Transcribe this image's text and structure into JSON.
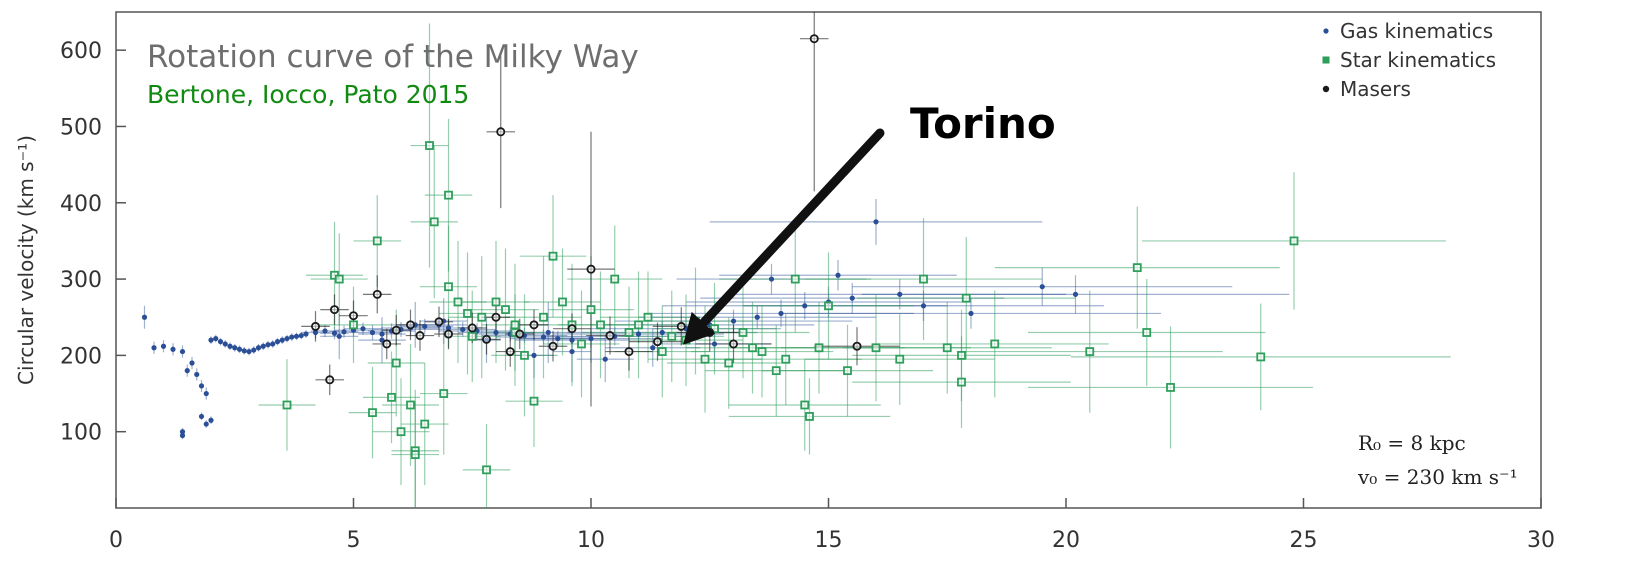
{
  "chart_data": {
    "type": "scatter",
    "title": "Rotation curve of the Milky Way",
    "subtitle": "Bertone, Iocco, Pato 2015",
    "xlabel": "",
    "ylabel": "Circular velocity (km s⁻¹)",
    "xlim": [
      0,
      30
    ],
    "ylim": [
      0,
      650
    ],
    "x_ticks": [
      "0",
      "5",
      "10",
      "15",
      "20",
      "25",
      "30"
    ],
    "y_ticks": [
      "100",
      "200",
      "300",
      "400",
      "500",
      "600"
    ],
    "grid": false,
    "legend_placement": "top-right",
    "annotation": {
      "text": "Torino",
      "x": 12.0,
      "y": 210
    },
    "params": {
      "r0": "R₀ = 8 kpc",
      "v0": "v₀ = 230 km s⁻¹"
    },
    "colors": {
      "gas": "#2b4f96",
      "star": "#2e9e5b",
      "maser": "#1a1a1a"
    },
    "series": [
      {
        "name": "Gas kinematics",
        "marker": "dot",
        "points": [
          [
            0.6,
            250,
            0,
            15
          ],
          [
            0.8,
            210,
            0,
            8
          ],
          [
            1.0,
            212,
            0,
            8
          ],
          [
            1.2,
            208,
            0,
            8
          ],
          [
            1.4,
            205,
            0,
            8
          ],
          [
            1.5,
            180,
            0,
            8
          ],
          [
            1.6,
            190,
            0,
            8
          ],
          [
            1.7,
            175,
            0,
            8
          ],
          [
            1.8,
            160,
            0,
            8
          ],
          [
            1.9,
            150,
            0,
            8
          ],
          [
            1.4,
            100,
            0,
            5
          ],
          [
            1.4,
            95,
            0,
            5
          ],
          [
            1.8,
            120,
            0,
            5
          ],
          [
            1.9,
            110,
            0,
            5
          ],
          [
            2.0,
            115,
            0,
            5
          ],
          [
            2.0,
            220,
            0,
            5
          ],
          [
            2.1,
            222,
            0,
            5
          ],
          [
            2.2,
            218,
            0,
            5
          ],
          [
            2.3,
            215,
            0,
            5
          ],
          [
            2.4,
            212,
            0,
            5
          ],
          [
            2.5,
            210,
            0,
            5
          ],
          [
            2.6,
            208,
            0,
            5
          ],
          [
            2.7,
            206,
            0,
            5
          ],
          [
            2.8,
            205,
            0,
            5
          ],
          [
            2.9,
            207,
            0,
            5
          ],
          [
            3.0,
            210,
            0,
            5
          ],
          [
            3.1,
            212,
            0,
            5
          ],
          [
            3.2,
            214,
            0,
            5
          ],
          [
            3.3,
            215,
            0,
            5
          ],
          [
            3.4,
            218,
            0,
            5
          ],
          [
            3.5,
            220,
            0,
            5
          ],
          [
            3.6,
            222,
            0,
            5
          ],
          [
            3.7,
            224,
            0,
            5
          ],
          [
            3.8,
            225,
            0,
            5
          ],
          [
            3.9,
            226,
            0,
            5
          ],
          [
            4.0,
            228,
            0,
            5
          ],
          [
            4.2,
            230,
            0.3,
            8
          ],
          [
            4.4,
            232,
            0.3,
            8
          ],
          [
            4.6,
            229,
            0.3,
            8
          ],
          [
            4.8,
            231,
            0.3,
            8
          ],
          [
            5.0,
            233,
            0.4,
            8
          ],
          [
            5.2,
            235,
            0.4,
            8
          ],
          [
            5.4,
            230,
            0.5,
            10
          ],
          [
            5.6,
            228,
            0.5,
            10
          ],
          [
            5.8,
            232,
            0.5,
            10
          ],
          [
            6.0,
            234,
            0.6,
            10
          ],
          [
            6.2,
            236,
            0.6,
            10
          ],
          [
            6.5,
            238,
            0.6,
            10
          ],
          [
            6.8,
            240,
            0.6,
            10
          ],
          [
            7.0,
            236,
            0.7,
            10
          ],
          [
            7.3,
            234,
            0.7,
            10
          ],
          [
            7.6,
            232,
            0.8,
            10
          ],
          [
            8.0,
            230,
            0.8,
            10
          ],
          [
            8.3,
            228,
            0.8,
            10
          ],
          [
            8.6,
            226,
            0.9,
            10
          ],
          [
            9.0,
            224,
            1.0,
            10
          ],
          [
            9.3,
            222,
            1.0,
            10
          ],
          [
            9.6,
            220,
            1.2,
            10
          ],
          [
            10.0,
            222,
            1.5,
            12
          ],
          [
            10.5,
            225,
            1.5,
            12
          ],
          [
            11.0,
            228,
            1.8,
            12
          ],
          [
            11.5,
            230,
            2.0,
            15
          ],
          [
            12.0,
            235,
            2.0,
            15
          ],
          [
            12.5,
            240,
            2.2,
            15
          ],
          [
            13.0,
            245,
            2.5,
            15
          ],
          [
            13.5,
            250,
            2.5,
            15
          ],
          [
            14.0,
            255,
            2.8,
            18
          ],
          [
            14.5,
            265,
            3.0,
            18
          ],
          [
            15.0,
            270,
            3.0,
            20
          ],
          [
            15.5,
            275,
            3.2,
            20
          ],
          [
            16.0,
            375,
            3.5,
            30
          ],
          [
            16.5,
            280,
            3.5,
            20
          ],
          [
            17.0,
            265,
            3.8,
            20
          ],
          [
            18.0,
            255,
            4.0,
            20
          ],
          [
            19.5,
            290,
            4.0,
            25
          ],
          [
            20.2,
            280,
            4.5,
            25
          ],
          [
            15.2,
            305,
            2.5,
            20
          ],
          [
            13.8,
            300,
            2.0,
            20
          ],
          [
            9.1,
            230,
            0.5,
            40
          ],
          [
            9.6,
            205,
            0.4,
            40
          ],
          [
            10.3,
            195,
            0.6,
            30
          ],
          [
            8.8,
            200,
            0.4,
            30
          ],
          [
            7.8,
            220,
            0.3,
            30
          ],
          [
            6.9,
            245,
            0.5,
            30
          ],
          [
            6.3,
            240,
            0.5,
            30
          ],
          [
            5.6,
            220,
            0.5,
            30
          ],
          [
            4.7,
            225,
            0.4,
            30
          ],
          [
            11.3,
            210,
            1.0,
            25
          ],
          [
            12.6,
            215,
            1.2,
            25
          ]
        ]
      },
      {
        "name": "Star kinematics",
        "marker": "square",
        "points": [
          [
            3.6,
            135,
            0.6,
            60
          ],
          [
            4.6,
            305,
            0.6,
            70
          ],
          [
            4.7,
            300,
            0.6,
            60
          ],
          [
            5.0,
            240,
            0.8,
            50
          ],
          [
            5.4,
            125,
            0.5,
            60
          ],
          [
            5.5,
            350,
            0.5,
            60
          ],
          [
            5.8,
            145,
            0.6,
            60
          ],
          [
            5.9,
            190,
            0.6,
            70
          ],
          [
            6.0,
            100,
            0.6,
            70
          ],
          [
            6.2,
            135,
            0.6,
            80
          ],
          [
            6.3,
            75,
            0.5,
            80
          ],
          [
            6.3,
            70,
            0.5,
            70
          ],
          [
            6.5,
            110,
            0.5,
            80
          ],
          [
            6.6,
            475,
            0.4,
            160
          ],
          [
            6.7,
            375,
            0.5,
            100
          ],
          [
            6.9,
            150,
            0.5,
            80
          ],
          [
            7.0,
            410,
            0.5,
            100
          ],
          [
            7.0,
            290,
            0.6,
            80
          ],
          [
            7.2,
            270,
            0.6,
            80
          ],
          [
            7.4,
            255,
            0.6,
            80
          ],
          [
            7.7,
            250,
            0.7,
            80
          ],
          [
            7.8,
            50,
            0.5,
            60
          ],
          [
            8.0,
            270,
            0.7,
            80
          ],
          [
            8.2,
            260,
            0.7,
            80
          ],
          [
            8.4,
            240,
            0.7,
            80
          ],
          [
            8.6,
            200,
            0.7,
            80
          ],
          [
            8.8,
            140,
            0.6,
            60
          ],
          [
            9.0,
            250,
            0.8,
            80
          ],
          [
            9.2,
            330,
            0.7,
            80
          ],
          [
            9.4,
            270,
            0.8,
            70
          ],
          [
            9.6,
            240,
            0.8,
            80
          ],
          [
            9.8,
            215,
            0.8,
            70
          ],
          [
            10.0,
            260,
            0.9,
            70
          ],
          [
            10.2,
            240,
            0.9,
            70
          ],
          [
            10.5,
            300,
            1.0,
            70
          ],
          [
            10.8,
            230,
            1.0,
            60
          ],
          [
            11.0,
            240,
            1.0,
            70
          ],
          [
            11.2,
            250,
            1.0,
            60
          ],
          [
            11.5,
            205,
            1.0,
            60
          ],
          [
            11.7,
            225,
            1.1,
            60
          ],
          [
            12.0,
            220,
            1.2,
            60
          ],
          [
            12.2,
            245,
            1.2,
            70
          ],
          [
            12.4,
            195,
            1.2,
            70
          ],
          [
            12.6,
            235,
            1.3,
            60
          ],
          [
            12.9,
            190,
            1.3,
            60
          ],
          [
            13.2,
            230,
            1.4,
            60
          ],
          [
            13.4,
            210,
            1.4,
            60
          ],
          [
            13.6,
            205,
            1.5,
            60
          ],
          [
            13.9,
            180,
            1.5,
            60
          ],
          [
            14.1,
            195,
            1.6,
            60
          ],
          [
            14.3,
            300,
            1.6,
            70
          ],
          [
            14.5,
            135,
            1.6,
            60
          ],
          [
            14.6,
            120,
            1.7,
            50
          ],
          [
            14.8,
            210,
            1.8,
            60
          ],
          [
            15.0,
            265,
            1.8,
            70
          ],
          [
            15.4,
            180,
            1.8,
            60
          ],
          [
            16.0,
            210,
            2.0,
            70
          ],
          [
            16.5,
            195,
            2.0,
            60
          ],
          [
            17.0,
            300,
            2.5,
            80
          ],
          [
            17.5,
            210,
            2.2,
            60
          ],
          [
            17.8,
            200,
            2.3,
            60
          ],
          [
            17.8,
            165,
            2.3,
            60
          ],
          [
            17.9,
            275,
            2.3,
            80
          ],
          [
            18.5,
            215,
            2.4,
            70
          ],
          [
            20.5,
            205,
            2.8,
            80
          ],
          [
            21.5,
            315,
            3.0,
            80
          ],
          [
            21.7,
            230,
            2.5,
            70
          ],
          [
            22.2,
            158,
            3.0,
            80
          ],
          [
            24.1,
            198,
            4.0,
            70
          ],
          [
            24.8,
            350,
            3.2,
            90
          ],
          [
            7.5,
            225,
            0.6,
            60
          ],
          [
            8.4,
            230,
            0.6,
            50
          ]
        ]
      },
      {
        "name": "Masers",
        "marker": "circle",
        "points": [
          [
            4.2,
            238,
            0.3,
            20
          ],
          [
            4.5,
            168,
            0.3,
            20
          ],
          [
            4.6,
            260,
            0.3,
            20
          ],
          [
            5.0,
            252,
            0.3,
            20
          ],
          [
            5.5,
            280,
            0.3,
            25
          ],
          [
            5.7,
            215,
            0.3,
            20
          ],
          [
            5.9,
            233,
            0.3,
            20
          ],
          [
            6.2,
            240,
            0.3,
            20
          ],
          [
            6.4,
            226,
            0.3,
            20
          ],
          [
            6.8,
            244,
            0.3,
            20
          ],
          [
            7.0,
            228,
            0.3,
            20
          ],
          [
            7.5,
            236,
            0.3,
            20
          ],
          [
            7.8,
            221,
            0.3,
            20
          ],
          [
            8.0,
            250,
            0.3,
            25
          ],
          [
            8.1,
            493,
            0.3,
            100
          ],
          [
            8.3,
            205,
            0.3,
            20
          ],
          [
            8.5,
            228,
            0.3,
            20
          ],
          [
            8.8,
            240,
            0.3,
            20
          ],
          [
            9.2,
            212,
            0.3,
            20
          ],
          [
            9.6,
            235,
            0.4,
            20
          ],
          [
            10.0,
            313,
            0.5,
            180
          ],
          [
            10.4,
            226,
            0.5,
            25
          ],
          [
            10.8,
            205,
            0.5,
            25
          ],
          [
            11.4,
            218,
            0.6,
            25
          ],
          [
            11.9,
            238,
            0.6,
            25
          ],
          [
            12.5,
            230,
            0.7,
            25
          ],
          [
            13.0,
            215,
            0.8,
            25
          ],
          [
            14.7,
            615,
            0.3,
            200
          ],
          [
            15.6,
            212,
            0.9,
            25
          ]
        ]
      }
    ]
  }
}
